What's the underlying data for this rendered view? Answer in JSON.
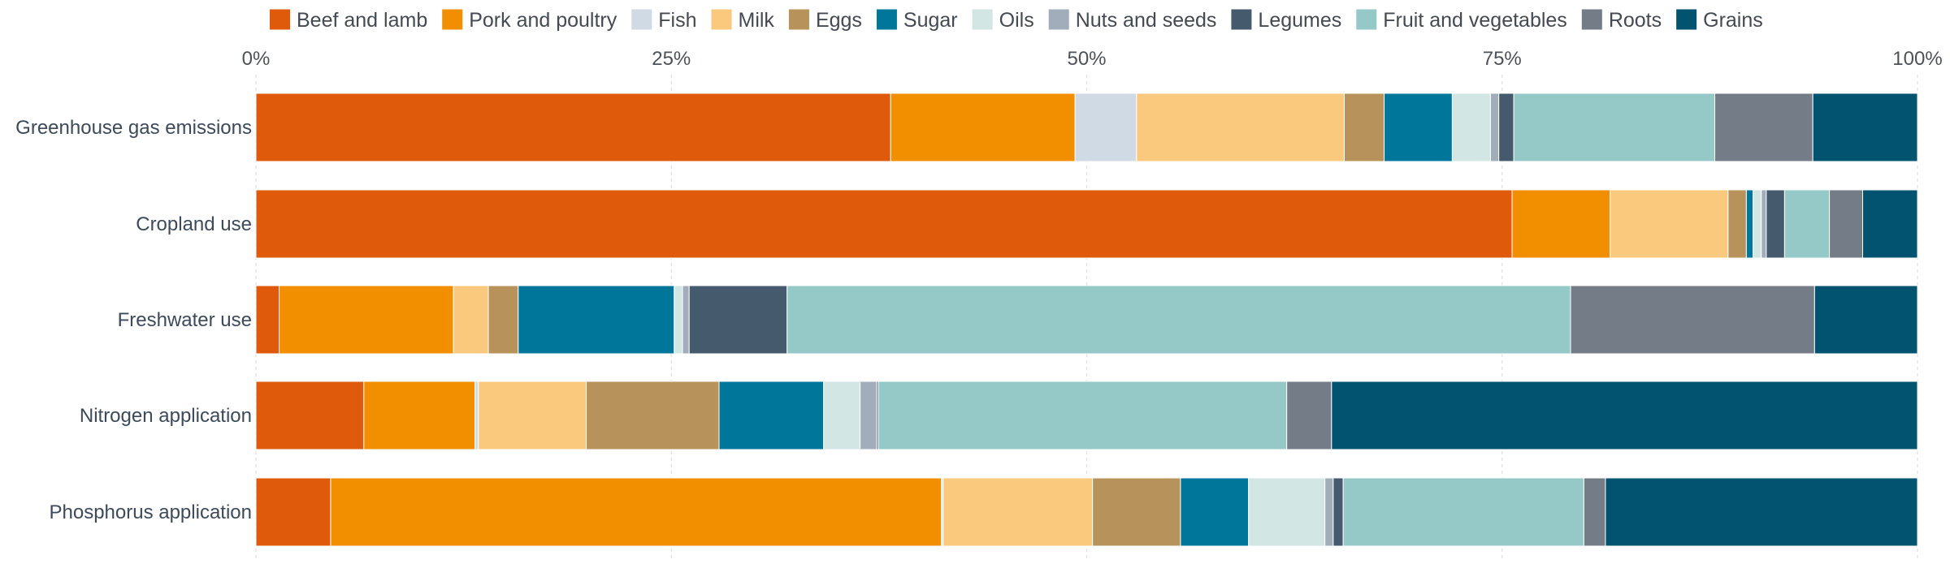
{
  "chart_data": {
    "type": "bar",
    "orientation": "horizontal",
    "stacked": true,
    "normalized_percent": true,
    "xlim": [
      0,
      100
    ],
    "x_ticks": [
      "0%",
      "25%",
      "50%",
      "75%",
      "100%"
    ],
    "legend_position": "top",
    "grid": true,
    "categories": [
      "Greenhouse gas emissions",
      "Cropland use",
      "Freshwater use",
      "Nitrogen application",
      "Phosphorus application"
    ],
    "series": [
      {
        "name": "Beef and lamb",
        "color": "#e05a0c",
        "values": [
          38.2,
          75.6,
          1.4,
          6.5,
          4.5
        ]
      },
      {
        "name": "Pork and poultry",
        "color": "#f18f00",
        "values": [
          11.1,
          5.9,
          10.5,
          6.7,
          36.8
        ]
      },
      {
        "name": "Fish",
        "color": "#d0dae4",
        "values": [
          3.7,
          0.0,
          0.0,
          0.2,
          0.1
        ]
      },
      {
        "name": "Milk",
        "color": "#fbc97e",
        "values": [
          12.5,
          7.1,
          2.1,
          6.5,
          9.0
        ]
      },
      {
        "name": "Eggs",
        "color": "#b8925b",
        "values": [
          2.4,
          1.1,
          1.8,
          8.0,
          5.3
        ]
      },
      {
        "name": "Sugar",
        "color": "#00769a",
        "values": [
          4.1,
          0.4,
          9.4,
          6.3,
          4.1
        ]
      },
      {
        "name": "Oils",
        "color": "#d2e6e4",
        "values": [
          2.3,
          0.5,
          0.5,
          2.2,
          4.6
        ]
      },
      {
        "name": "Nuts and seeds",
        "color": "#a1adba",
        "values": [
          0.5,
          0.3,
          0.4,
          1.0,
          0.5
        ]
      },
      {
        "name": "Legumes",
        "color": "#455a6c",
        "values": [
          0.9,
          1.1,
          5.9,
          0.1,
          0.6
        ]
      },
      {
        "name": "Fruit and vegetables",
        "color": "#95c9c8",
        "values": [
          12.1,
          2.7,
          47.2,
          24.6,
          14.5
        ]
      },
      {
        "name": "Roots",
        "color": "#747c87",
        "values": [
          5.9,
          2.0,
          14.7,
          2.7,
          1.3
        ]
      },
      {
        "name": "Grains",
        "color": "#02536f",
        "values": [
          6.3,
          3.3,
          6.2,
          35.3,
          18.8
        ]
      }
    ]
  }
}
